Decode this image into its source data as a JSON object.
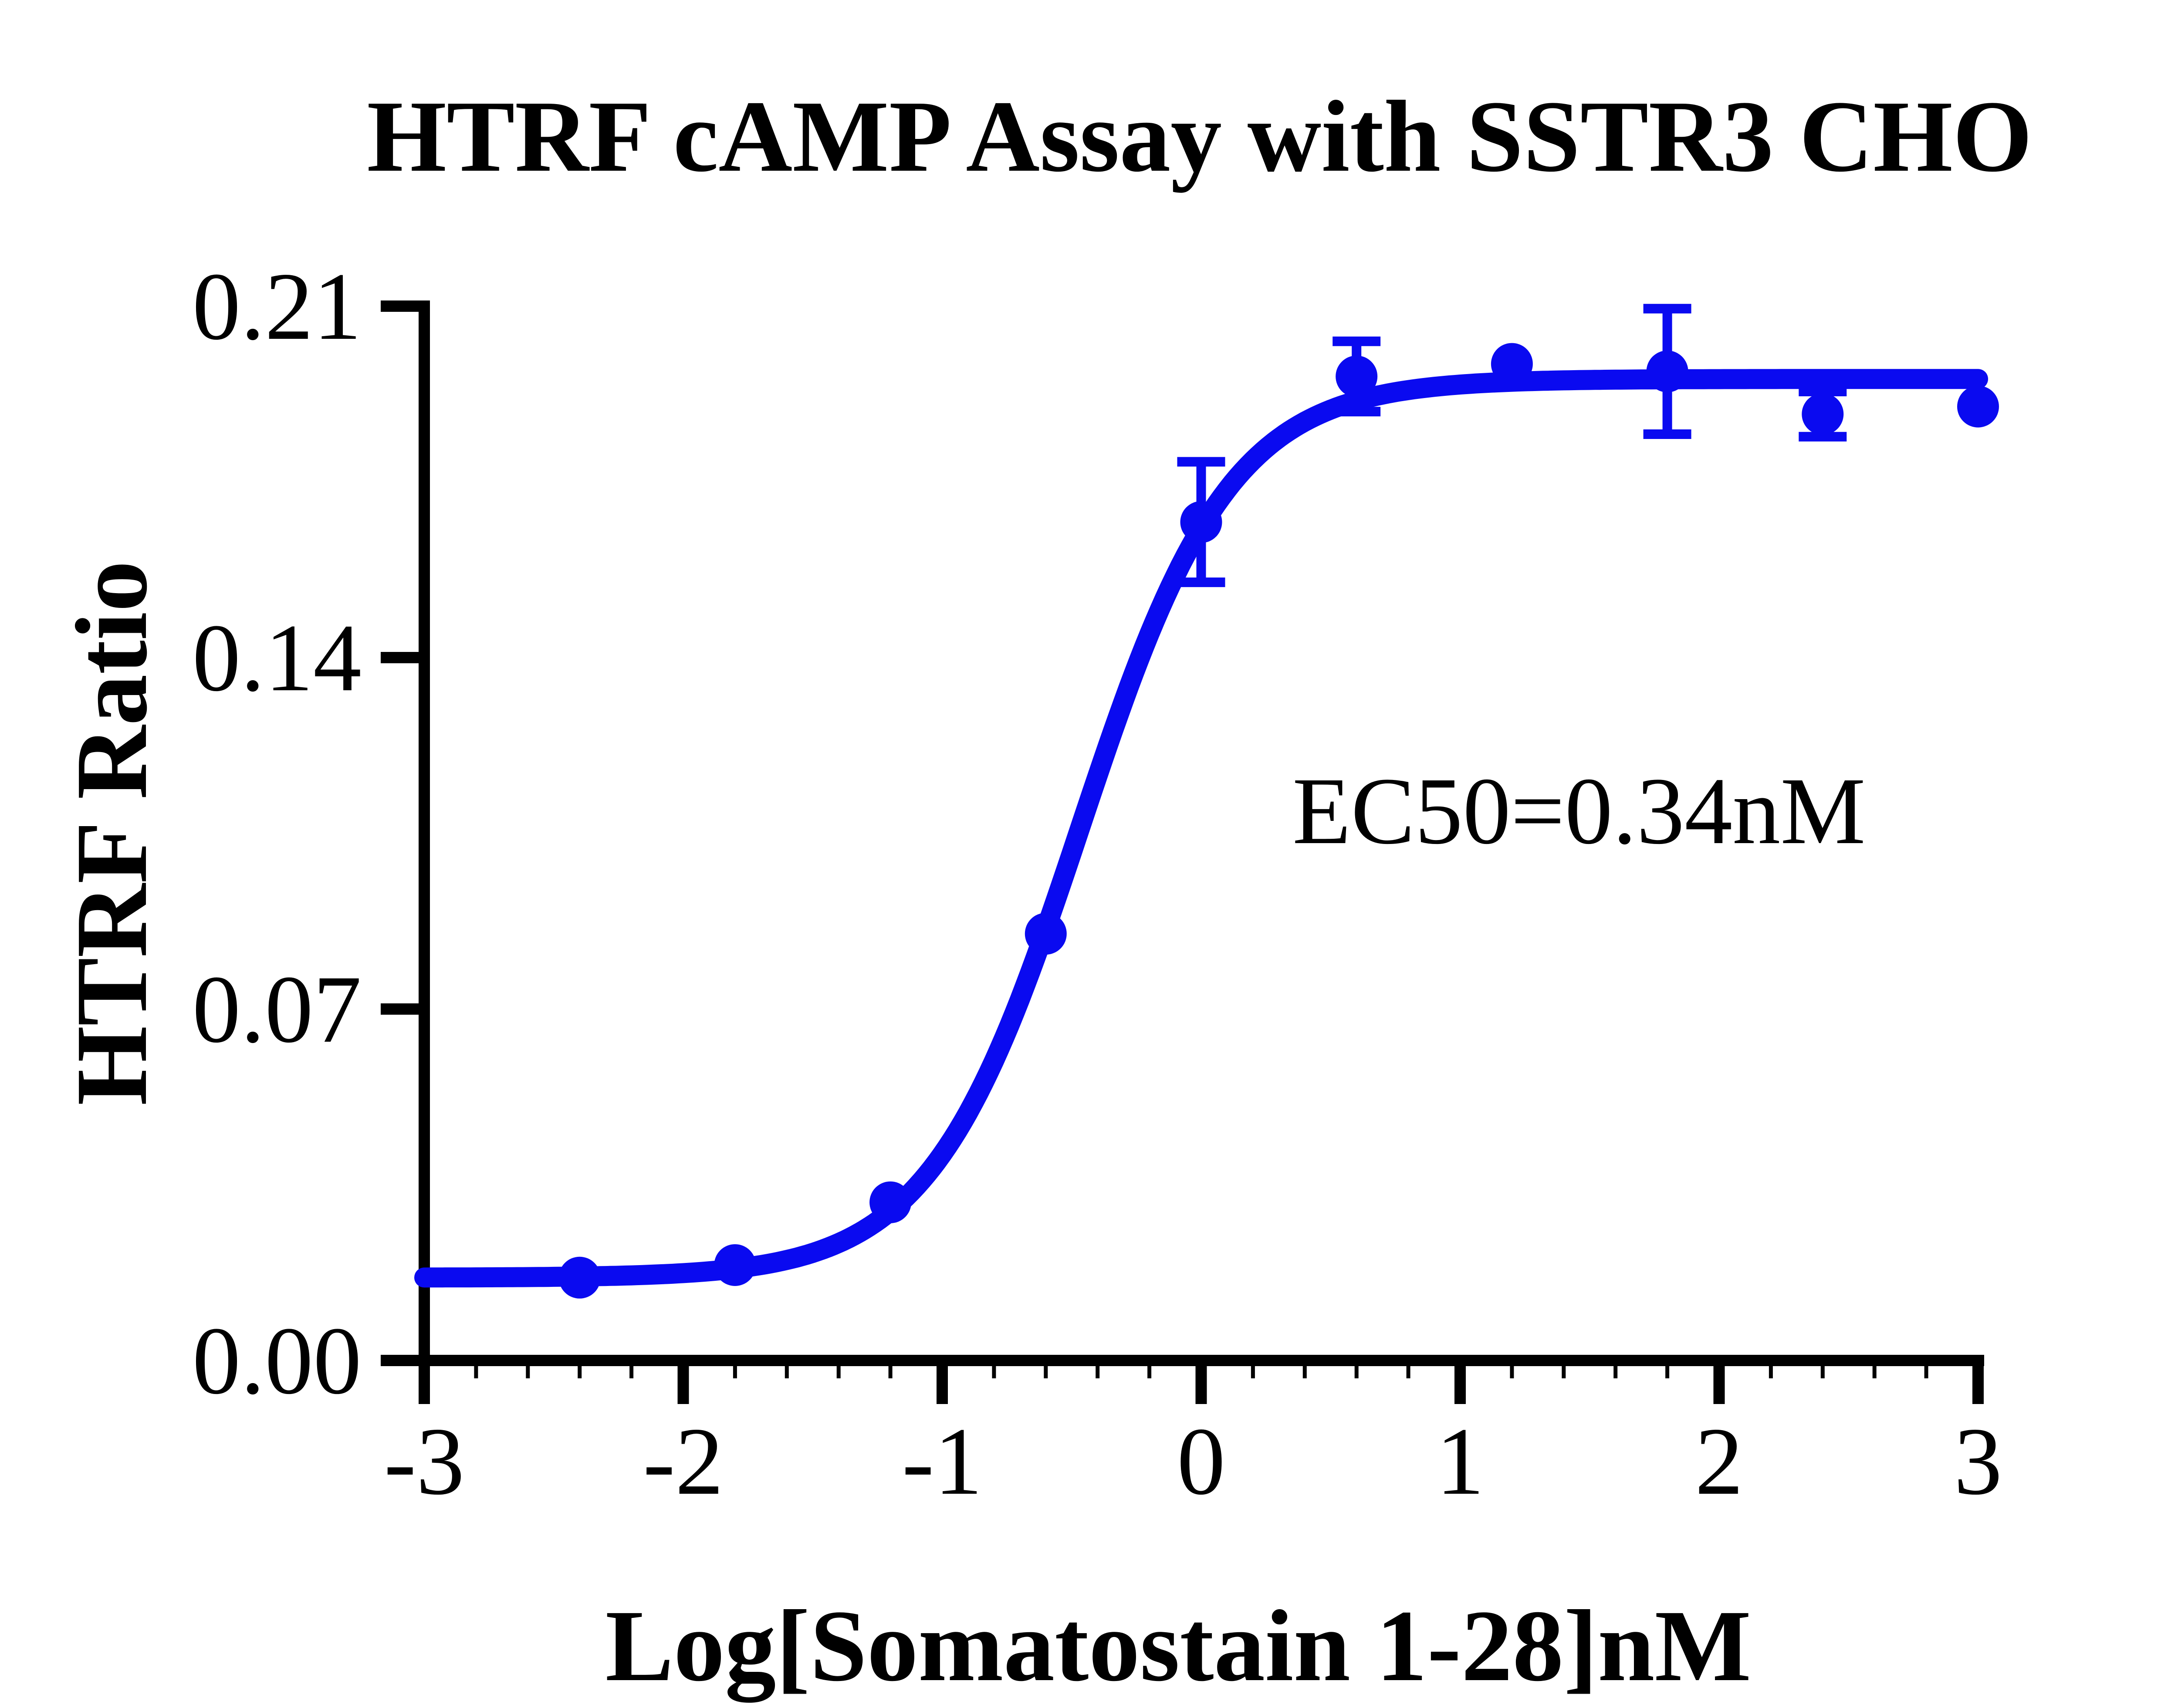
{
  "colors": {
    "series": "#0A0AF0",
    "axis": "#000000",
    "background": "#FFFFFF"
  },
  "chart_data": {
    "type": "scatter",
    "title": "HTRF cAMP Assay with SSTR3 CHO",
    "xlabel": "Log[Somatostain 1-28]nM",
    "ylabel": "HTRF Ratio",
    "xlim": [
      -3,
      3
    ],
    "ylim": [
      0.0,
      0.21
    ],
    "x_ticks": [
      -3,
      -2,
      -1,
      0,
      1,
      2,
      3
    ],
    "x_tick_labels": [
      "-3",
      "-2",
      "-1",
      "0",
      "1",
      "2",
      "3"
    ],
    "y_ticks": [
      0.0,
      0.07,
      0.14,
      0.21
    ],
    "y_tick_labels": [
      "0.00",
      "0.07",
      "0.14",
      "0.21"
    ],
    "x_minor_tick_step": 0.2,
    "grid": false,
    "legend": "none",
    "series": [
      {
        "name": "Somatostatin 1-28",
        "x": [
          -2.4,
          -1.8,
          -1.2,
          -0.6,
          0.0,
          0.6,
          1.2,
          1.8,
          2.4,
          3.0
        ],
        "y": [
          0.0165,
          0.019,
          0.0315,
          0.085,
          0.167,
          0.196,
          0.1985,
          0.197,
          0.1885,
          0.19
        ],
        "y_err": [
          0,
          0,
          0,
          0,
          0.012,
          0.007,
          0,
          0.0125,
          0.0045,
          0
        ]
      }
    ],
    "fit_curve": {
      "model": "four-parameter-logistic",
      "bottom": 0.0165,
      "top": 0.1955,
      "log_ec50": -0.468,
      "hill": 1.5
    },
    "annotation": {
      "text": "EC50=0.34nM",
      "x": 0.35,
      "y": 0.103
    },
    "ec50_label": "EC50=0.34nM",
    "ec50_nM": 0.34
  }
}
